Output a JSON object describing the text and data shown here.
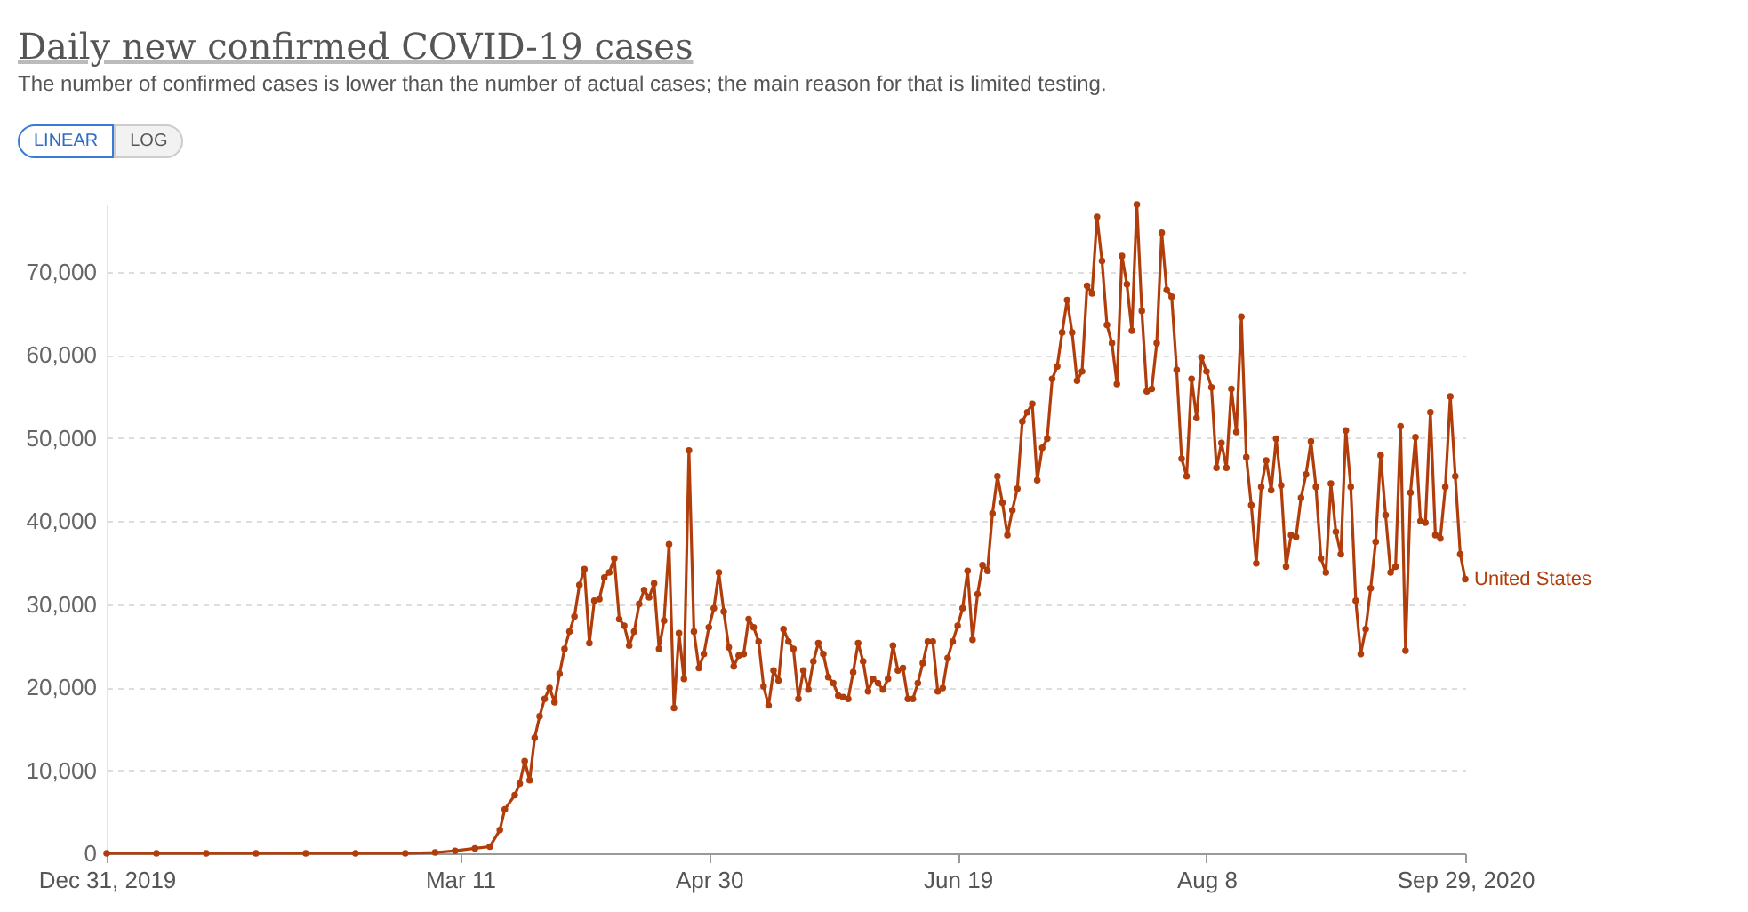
{
  "chart_data": {
    "type": "line",
    "title": "Daily new confirmed COVID-19 cases",
    "subtitle": "The number of confirmed cases is lower than the number of actual cases; the main reason for that is limited testing.",
    "annotations": [
      "LINEAR",
      "LOG"
    ],
    "x": [
      "2019-12-31",
      "2020-01-10",
      "2020-01-20",
      "2020-01-30",
      "2020-02-09",
      "2020-02-19",
      "2020-02-29",
      "2020-03-06",
      "2020-03-10",
      "2020-03-14",
      "2020-03-17",
      "2020-03-19",
      "2020-03-20",
      "2020-03-22",
      "2020-03-23",
      "2020-03-24",
      "2020-03-25",
      "2020-03-26",
      "2020-03-27",
      "2020-03-28",
      "2020-03-29",
      "2020-03-30",
      "2020-03-31",
      "2020-04-01",
      "2020-04-02",
      "2020-04-03",
      "2020-04-04",
      "2020-04-05",
      "2020-04-06",
      "2020-04-07",
      "2020-04-08",
      "2020-04-09",
      "2020-04-10",
      "2020-04-11",
      "2020-04-12",
      "2020-04-13",
      "2020-04-14",
      "2020-04-15",
      "2020-04-16",
      "2020-04-17",
      "2020-04-18",
      "2020-04-19",
      "2020-04-20",
      "2020-04-21",
      "2020-04-22",
      "2020-04-23",
      "2020-04-24",
      "2020-04-25",
      "2020-04-26",
      "2020-04-27",
      "2020-04-28",
      "2020-04-29",
      "2020-04-30",
      "2020-05-01",
      "2020-05-02",
      "2020-05-03",
      "2020-05-04",
      "2020-05-05",
      "2020-05-06",
      "2020-05-07",
      "2020-05-08",
      "2020-05-09",
      "2020-05-10",
      "2020-05-11",
      "2020-05-12",
      "2020-05-13",
      "2020-05-14",
      "2020-05-15",
      "2020-05-16",
      "2020-05-17",
      "2020-05-18",
      "2020-05-19",
      "2020-05-20",
      "2020-05-21",
      "2020-05-22",
      "2020-05-23",
      "2020-05-24",
      "2020-05-25",
      "2020-05-26",
      "2020-05-27",
      "2020-05-28",
      "2020-05-29",
      "2020-05-30",
      "2020-05-31",
      "2020-06-01",
      "2020-06-02",
      "2020-06-03",
      "2020-06-04",
      "2020-06-05",
      "2020-06-06",
      "2020-06-07",
      "2020-06-08",
      "2020-06-09",
      "2020-06-10",
      "2020-06-11",
      "2020-06-12",
      "2020-06-13",
      "2020-06-14",
      "2020-06-15",
      "2020-06-16",
      "2020-06-17",
      "2020-06-18",
      "2020-06-19",
      "2020-06-20",
      "2020-06-21",
      "2020-06-22",
      "2020-06-23",
      "2020-06-24",
      "2020-06-25",
      "2020-06-26",
      "2020-06-27",
      "2020-06-28",
      "2020-06-29",
      "2020-06-30",
      "2020-07-01",
      "2020-07-02",
      "2020-07-03",
      "2020-07-04",
      "2020-07-05",
      "2020-07-06",
      "2020-07-07",
      "2020-07-08",
      "2020-07-09",
      "2020-07-10",
      "2020-07-11",
      "2020-07-12",
      "2020-07-13",
      "2020-07-14",
      "2020-07-15",
      "2020-07-16",
      "2020-07-17",
      "2020-07-18",
      "2020-07-19",
      "2020-07-20",
      "2020-07-21",
      "2020-07-22",
      "2020-07-23",
      "2020-07-24",
      "2020-07-25",
      "2020-07-26",
      "2020-07-27",
      "2020-07-28",
      "2020-07-29",
      "2020-07-30",
      "2020-07-31",
      "2020-08-01",
      "2020-08-02",
      "2020-08-03",
      "2020-08-04",
      "2020-08-05",
      "2020-08-06",
      "2020-08-07",
      "2020-08-08",
      "2020-08-09",
      "2020-08-10",
      "2020-08-11",
      "2020-08-12",
      "2020-08-13",
      "2020-08-14",
      "2020-08-15",
      "2020-08-16",
      "2020-08-17",
      "2020-08-18",
      "2020-08-19",
      "2020-08-20",
      "2020-08-21",
      "2020-08-22",
      "2020-08-23",
      "2020-08-24",
      "2020-08-25",
      "2020-08-26",
      "2020-08-27",
      "2020-08-28",
      "2020-08-29",
      "2020-08-30",
      "2020-08-31",
      "2020-09-01",
      "2020-09-02",
      "2020-09-03",
      "2020-09-04",
      "2020-09-05",
      "2020-09-06",
      "2020-09-07",
      "2020-09-08",
      "2020-09-09",
      "2020-09-10",
      "2020-09-11",
      "2020-09-12",
      "2020-09-13",
      "2020-09-14",
      "2020-09-15",
      "2020-09-16",
      "2020-09-17",
      "2020-09-18",
      "2020-09-19",
      "2020-09-20",
      "2020-09-21",
      "2020-09-22",
      "2020-09-23",
      "2020-09-24",
      "2020-09-25",
      "2020-09-26",
      "2020-09-27",
      "2020-09-28",
      "2020-09-29"
    ],
    "series": [
      {
        "name": "United States",
        "color": "#b13d0b",
        "values": [
          0,
          0,
          0,
          0,
          0,
          0,
          0,
          100,
          300,
          600,
          800,
          2800,
          5300,
          7000,
          8400,
          11100,
          8800,
          13900,
          16500,
          18600,
          19900,
          18200,
          21600,
          24600,
          26700,
          28500,
          32300,
          34200,
          25300,
          30400,
          30600,
          33200,
          33800,
          35500,
          28200,
          27400,
          25000,
          26700,
          30000,
          31700,
          30800,
          32500,
          24600,
          28000,
          37200,
          17500,
          26500,
          21000,
          48500,
          26700,
          22300,
          24000,
          27200,
          29500,
          33800,
          29100,
          24800,
          22500,
          23800,
          24000,
          28200,
          27200,
          25500,
          20100,
          17800,
          22000,
          20800,
          27000,
          25500,
          24600,
          18600,
          22000,
          19700,
          23100,
          25300,
          24000,
          21200,
          20500,
          19000,
          18800,
          18600,
          21800,
          25300,
          23100,
          19500,
          21000,
          20500,
          19700,
          21000,
          25000,
          22000,
          22300,
          18600,
          18600,
          20500,
          22900,
          25500,
          25500,
          19500,
          19900,
          23500,
          25500,
          27400,
          29500,
          34000,
          25700,
          31200,
          34700,
          34000,
          40900,
          45400,
          42200,
          38300,
          41300,
          43900,
          52000,
          53100,
          54100,
          44900,
          48800,
          49900,
          57100,
          58600,
          62700,
          66600,
          62700,
          56900,
          58000,
          68300,
          67400,
          76600,
          71300,
          63600,
          61400,
          56500,
          71900,
          68500,
          62900,
          78100,
          65300,
          55600,
          55900,
          61400,
          74700,
          67800,
          67000,
          58200,
          47500,
          45400,
          57100,
          52400,
          59700,
          58000,
          56100,
          46400,
          49400,
          46400,
          55900,
          50700,
          64600,
          47700,
          41900,
          34900,
          44100,
          47300,
          43700,
          49900,
          44300,
          34500,
          38300,
          38100,
          42800,
          45600,
          49600,
          44100,
          35500,
          33800,
          44500,
          38700,
          36000,
          50900,
          44100,
          30400,
          24000,
          27000,
          31900,
          37500,
          47900,
          40700,
          33800,
          34500,
          51400,
          24400,
          43400,
          50100,
          40000,
          39800,
          53100,
          38300,
          37900,
          44100,
          55000,
          45400,
          36000,
          33000
        ]
      }
    ],
    "xlim": [
      "2019-12-31",
      "2020-09-29"
    ],
    "xticks": [
      {
        "value": "2019-12-31",
        "label": "Dec 31, 2019"
      },
      {
        "value": "2020-03-11",
        "label": "Mar 11"
      },
      {
        "value": "2020-04-30",
        "label": "Apr 30"
      },
      {
        "value": "2020-06-19",
        "label": "Jun 19"
      },
      {
        "value": "2020-08-08",
        "label": "Aug 8"
      },
      {
        "value": "2020-09-29",
        "label": "Sep 29, 2020"
      }
    ],
    "ylim": [
      0,
      78100
    ],
    "yticks": [
      {
        "value": 0,
        "label": "0"
      },
      {
        "value": 10000,
        "label": "10,000"
      },
      {
        "value": 20000,
        "label": "20,000"
      },
      {
        "value": 30000,
        "label": "30,000"
      },
      {
        "value": 40000,
        "label": "40,000"
      },
      {
        "value": 50000,
        "label": "50,000"
      },
      {
        "value": 60000,
        "label": "60,000"
      },
      {
        "value": 70000,
        "label": "70,000"
      }
    ],
    "grid": "y",
    "marker": "circle"
  }
}
